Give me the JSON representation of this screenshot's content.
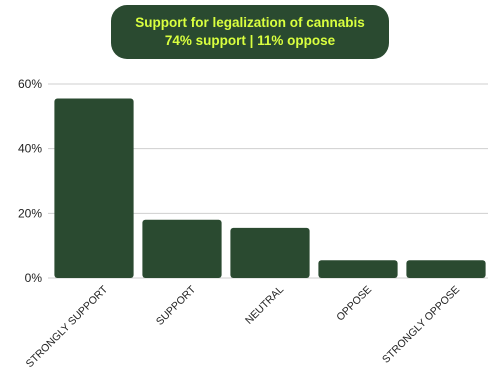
{
  "chart_data": {
    "type": "bar",
    "title": "Support for legalization of cannabis",
    "subtitle": "74% support | 11% oppose",
    "categories": [
      "STRONGLY SUPPORT",
      "SUPPORT",
      "NEUTRAL",
      "OPPOSE",
      "STRONGLY OPPOSE"
    ],
    "values": [
      55.5,
      18,
      15.5,
      5.5,
      5.5
    ],
    "ylim": [
      0,
      60
    ],
    "yticks": [
      "0%",
      "20%",
      "40%",
      "60%"
    ],
    "ytick_values": [
      0,
      20,
      40,
      60
    ],
    "grid": true,
    "bar_color": "#2a4a30",
    "title_box_color": "#2a4a30",
    "title_text_color": "#d9ff3f"
  }
}
